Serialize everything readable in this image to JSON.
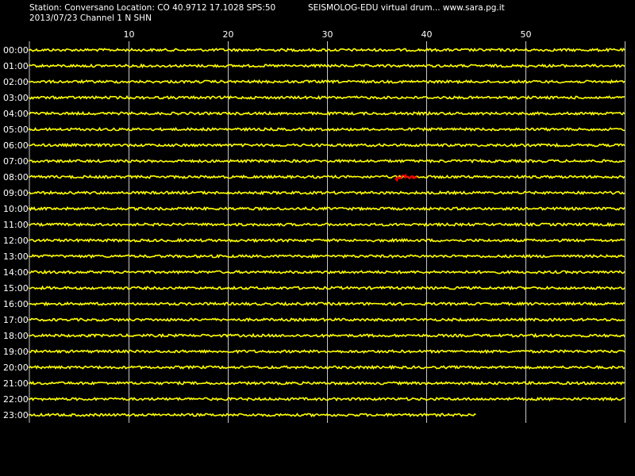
{
  "header": {
    "station_line": "Station: Conversano Location: CO 40.9712 17.1028 SPS:50",
    "date_line": "2013/07/23  Channel 1 N SHN",
    "title": "SEISMOLOG-EDU virtual drum... www.sara.pg.it"
  },
  "chart_data": {
    "type": "line",
    "title": "SEISMOLOG-EDU virtual drum... www.sara.pg.it",
    "xlabel": "",
    "ylabel": "",
    "x_ticks": [
      10,
      20,
      30,
      40,
      50
    ],
    "xlim": [
      0,
      60
    ],
    "grid": true,
    "row_labels": [
      "00:00",
      "01:00",
      "02:00",
      "03:00",
      "04:00",
      "05:00",
      "06:00",
      "07:00",
      "08:00",
      "09:00",
      "10:00",
      "11:00",
      "12:00",
      "13:00",
      "14:00",
      "15:00",
      "16:00",
      "17:00",
      "18:00",
      "19:00",
      "20:00",
      "21:00",
      "22:00",
      "23:00"
    ],
    "row_end_minute": [
      60,
      60,
      60,
      60,
      60,
      60,
      60,
      60,
      60,
      60,
      60,
      60,
      60,
      60,
      60,
      60,
      60,
      60,
      60,
      60,
      60,
      60,
      60,
      45
    ],
    "event": {
      "row": "08:00",
      "start_minute": 36.9,
      "end_minute": 39.1
    },
    "colors": {
      "trace": "#ffff00",
      "event": "#ff0000",
      "grid": "#c8c8c8",
      "text": "#ffffff",
      "background": "#000000"
    }
  }
}
